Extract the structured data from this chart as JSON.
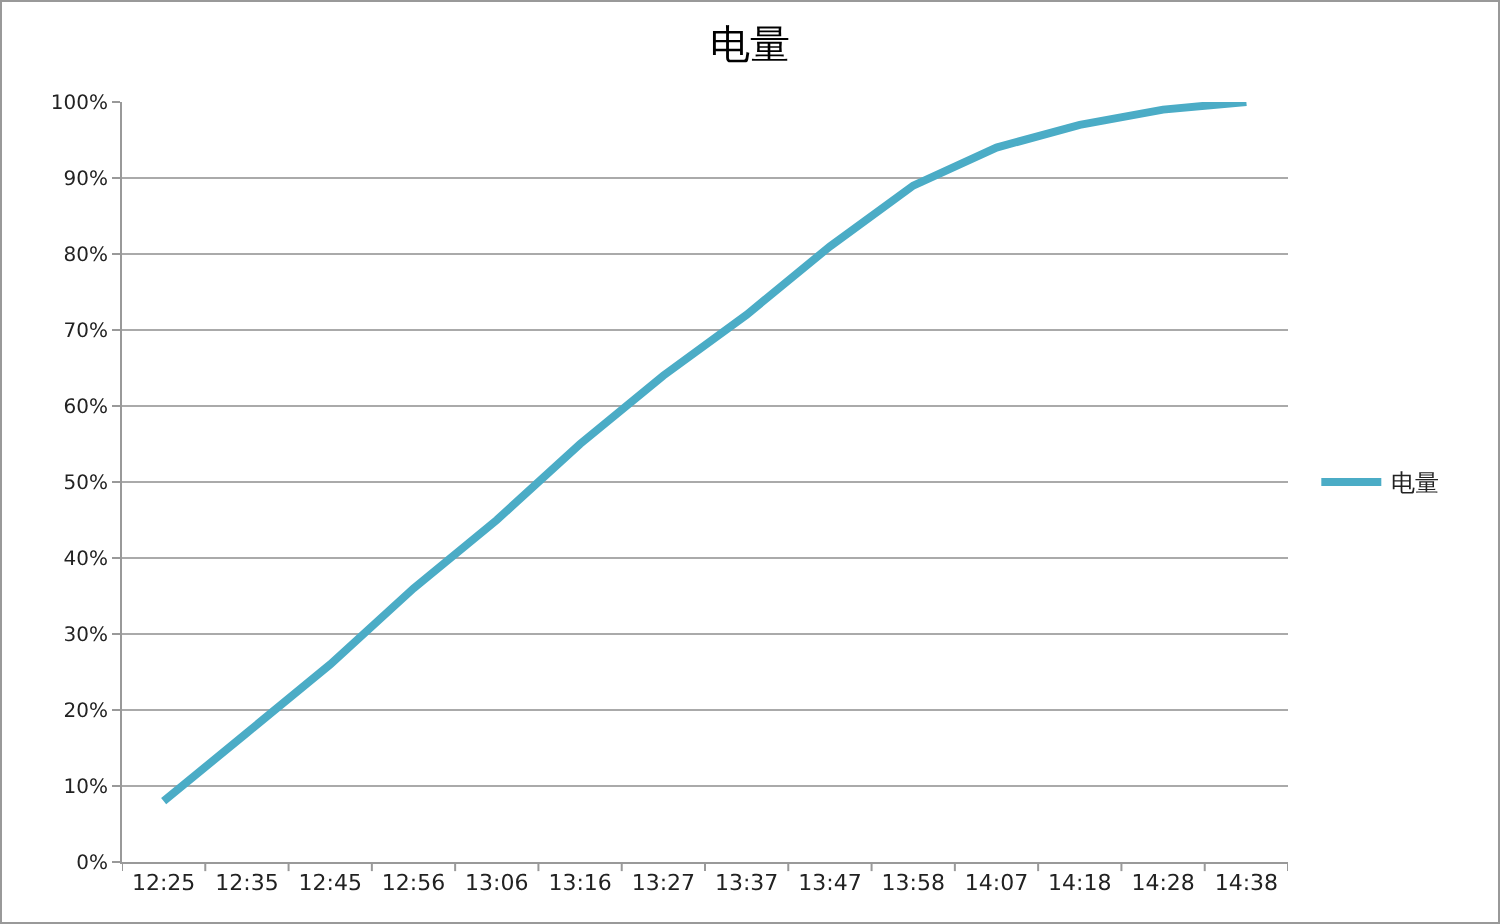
{
  "chart_data": {
    "type": "line",
    "title": "电量",
    "categories": [
      "12:25",
      "12:35",
      "12:45",
      "12:56",
      "13:06",
      "13:16",
      "13:27",
      "13:37",
      "13:47",
      "13:58",
      "14:07",
      "14:18",
      "14:28",
      "14:38"
    ],
    "series": [
      {
        "name": "电量",
        "color": "#4bacc6",
        "values": [
          8,
          17,
          26,
          36,
          45,
          55,
          64,
          72,
          81,
          89,
          94,
          97,
          99,
          100
        ]
      }
    ],
    "ylim": [
      0,
      100
    ],
    "yticks": [
      {
        "value": 0,
        "label": "0%"
      },
      {
        "value": 10,
        "label": "10%"
      },
      {
        "value": 20,
        "label": "20%"
      },
      {
        "value": 30,
        "label": "30%"
      },
      {
        "value": 40,
        "label": "40%"
      },
      {
        "value": 50,
        "label": "50%"
      },
      {
        "value": 60,
        "label": "60%"
      },
      {
        "value": 70,
        "label": "70%"
      },
      {
        "value": 80,
        "label": "80%"
      },
      {
        "value": 90,
        "label": "90%"
      },
      {
        "value": 100,
        "label": "100%"
      }
    ],
    "grid": "y",
    "legend": "right",
    "marker": "none",
    "line_style": "solid"
  }
}
